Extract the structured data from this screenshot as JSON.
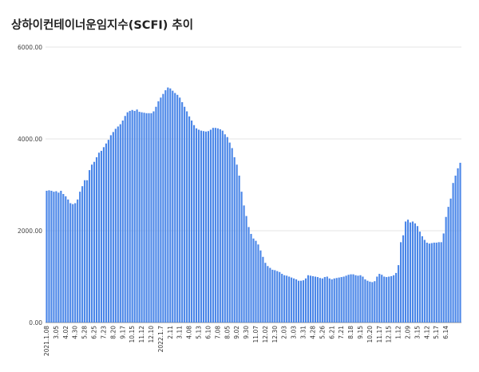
{
  "chart_data": {
    "type": "bar",
    "title": "상하이컨테이너운임지수(SCFI) 추이",
    "xlabel": "",
    "ylabel": "",
    "ylim": [
      0,
      6000
    ],
    "y_ticks": [
      "0.00",
      "2000.00",
      "4000.00",
      "6000.00"
    ],
    "y_tick_values": [
      0,
      2000,
      4000,
      6000
    ],
    "grid": true,
    "legend": "none",
    "bar_color": "#4a86e8",
    "x_tick_labels": [
      {
        "i": 0,
        "label": "2021.1.08"
      },
      {
        "i": 4,
        "label": "3.05"
      },
      {
        "i": 8,
        "label": "4.02"
      },
      {
        "i": 12,
        "label": "4.30"
      },
      {
        "i": 16,
        "label": "5.28"
      },
      {
        "i": 20,
        "label": "6.25"
      },
      {
        "i": 24,
        "label": "7.23"
      },
      {
        "i": 28,
        "label": "8.20"
      },
      {
        "i": 32,
        "label": "9.17"
      },
      {
        "i": 36,
        "label": "10.15"
      },
      {
        "i": 40,
        "label": "11.12"
      },
      {
        "i": 44,
        "label": "12.10"
      },
      {
        "i": 48,
        "label": "2022.1.7"
      },
      {
        "i": 52,
        "label": "2.11"
      },
      {
        "i": 56,
        "label": "3.11"
      },
      {
        "i": 60,
        "label": "4.08"
      },
      {
        "i": 64,
        "label": "5.13"
      },
      {
        "i": 68,
        "label": "6.10"
      },
      {
        "i": 72,
        "label": "7.08"
      },
      {
        "i": 76,
        "label": "8.05"
      },
      {
        "i": 80,
        "label": "9.02"
      },
      {
        "i": 84,
        "label": "9.30"
      },
      {
        "i": 88,
        "label": "11.07"
      },
      {
        "i": 92,
        "label": "12.02"
      },
      {
        "i": 96,
        "label": "12.30"
      },
      {
        "i": 100,
        "label": "2.03"
      },
      {
        "i": 104,
        "label": "3.03"
      },
      {
        "i": 108,
        "label": "3.31"
      },
      {
        "i": 112,
        "label": "4.28"
      },
      {
        "i": 116,
        "label": "5.26"
      },
      {
        "i": 120,
        "label": "6.21"
      },
      {
        "i": 124,
        "label": "7.21"
      },
      {
        "i": 128,
        "label": "8.18"
      },
      {
        "i": 132,
        "label": "9.15"
      },
      {
        "i": 136,
        "label": "10.20"
      },
      {
        "i": 140,
        "label": "11.17"
      },
      {
        "i": 144,
        "label": "12.15"
      },
      {
        "i": 148,
        "label": "1.12"
      },
      {
        "i": 152,
        "label": "2.09"
      },
      {
        "i": 156,
        "label": "3.15"
      },
      {
        "i": 160,
        "label": "4.12"
      },
      {
        "i": 164,
        "label": "5.17"
      },
      {
        "i": 168,
        "label": "6.14"
      }
    ],
    "values": [
      2870,
      2880,
      2870,
      2850,
      2860,
      2830,
      2870,
      2800,
      2750,
      2680,
      2600,
      2580,
      2600,
      2680,
      2850,
      2970,
      3100,
      3100,
      3320,
      3440,
      3500,
      3600,
      3700,
      3740,
      3820,
      3900,
      3980,
      4080,
      4150,
      4220,
      4270,
      4320,
      4400,
      4500,
      4580,
      4610,
      4630,
      4610,
      4640,
      4590,
      4580,
      4570,
      4560,
      4560,
      4560,
      4600,
      4700,
      4820,
      4900,
      4980,
      5060,
      5120,
      5100,
      5050,
      5000,
      4960,
      4900,
      4800,
      4700,
      4600,
      4490,
      4400,
      4300,
      4230,
      4200,
      4180,
      4170,
      4160,
      4170,
      4200,
      4240,
      4240,
      4230,
      4210,
      4180,
      4100,
      4040,
      3920,
      3800,
      3600,
      3440,
      3200,
      2850,
      2550,
      2320,
      2080,
      1930,
      1830,
      1780,
      1700,
      1570,
      1430,
      1300,
      1230,
      1190,
      1150,
      1140,
      1120,
      1100,
      1060,
      1030,
      1020,
      1000,
      980,
      960,
      940,
      910,
      910,
      920,
      960,
      1030,
      1020,
      1010,
      1000,
      990,
      970,
      960,
      990,
      1000,
      960,
      940,
      960,
      970,
      980,
      990,
      1000,
      1020,
      1040,
      1050,
      1050,
      1030,
      1020,
      1030,
      1000,
      940,
      910,
      890,
      880,
      900,
      1000,
      1060,
      1040,
      1000,
      990,
      1000,
      1010,
      1030,
      1080,
      1250,
      1750,
      1900,
      2200,
      2240,
      2180,
      2200,
      2160,
      2100,
      1980,
      1880,
      1800,
      1740,
      1720,
      1730,
      1740,
      1740,
      1750,
      1750,
      1940,
      2300,
      2520,
      2700,
      3040,
      3200,
      3360,
      3480
    ]
  }
}
